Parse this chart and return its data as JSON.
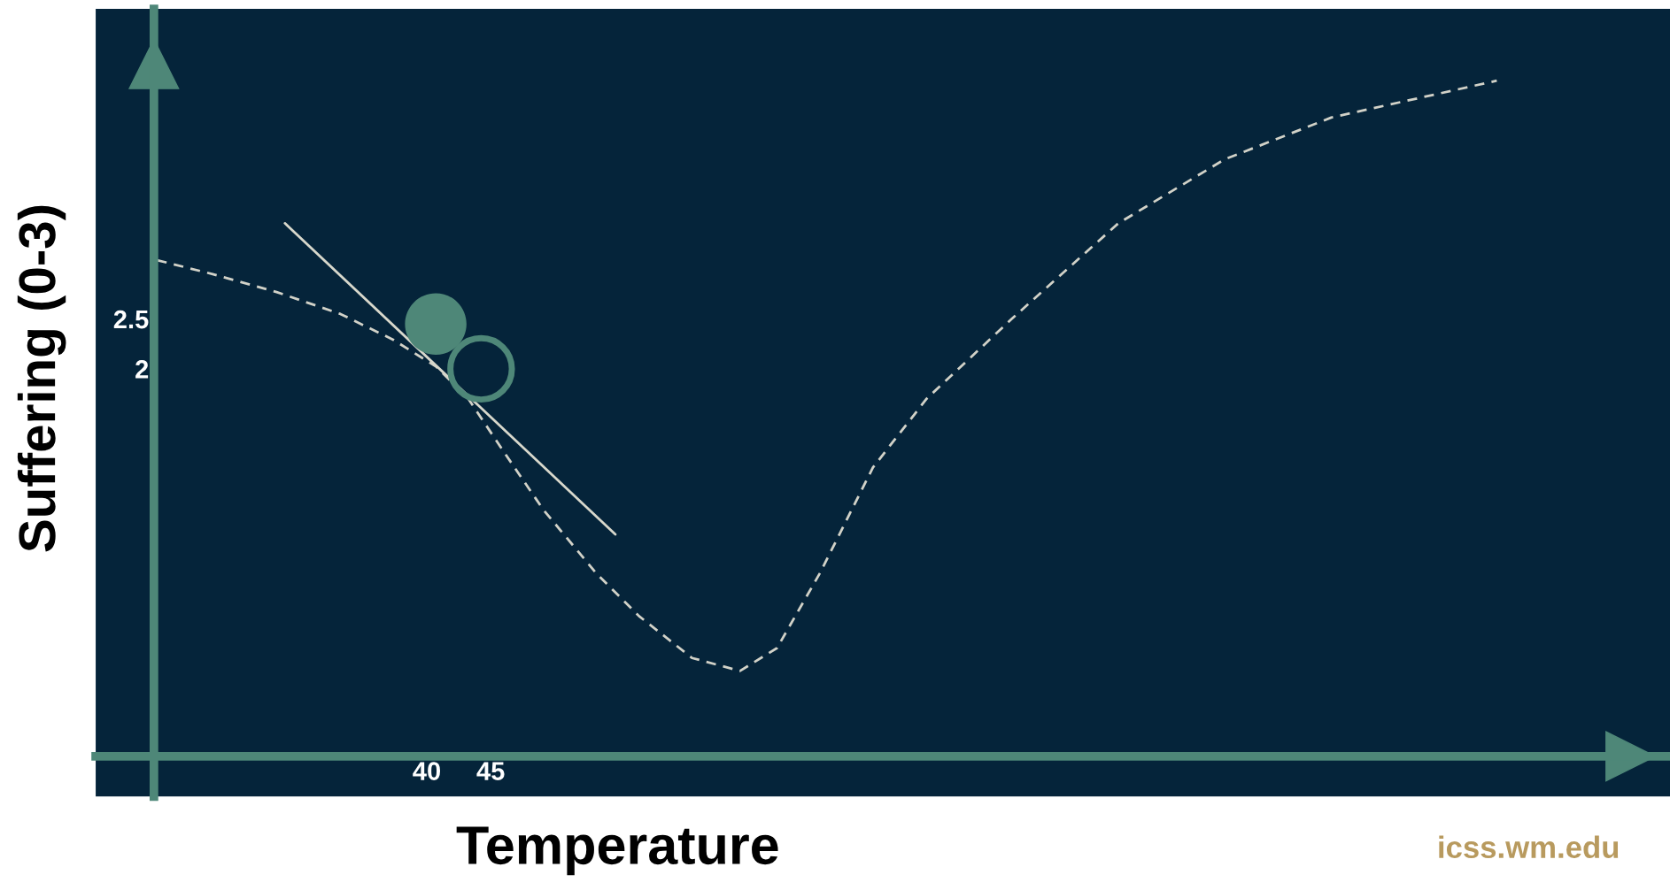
{
  "chart_data": {
    "type": "line",
    "xlabel": "Temperature",
    "ylabel": "Suffering (0-3)",
    "xlim": [
      14.1,
      137.25
    ],
    "ylim": [
      -2.29,
      5.61
    ],
    "xticks": [
      40,
      45
    ],
    "yticks": [
      2,
      2.5
    ],
    "grid": false,
    "series": [
      {
        "color": "#d2d2c8",
        "line_style": "dashed",
        "x": [
          18.9,
          23.25,
          28.25,
          33.25,
          37.4,
          40.75,
          43.25,
          45.75,
          49.1,
          53.25,
          56.6,
          60.75,
          64.5,
          67.4,
          70.75,
          74.9,
          79.1,
          85.75,
          94.1,
          102.4,
          110.75,
          123.7
        ],
        "values": [
          3.09,
          2.95,
          2.77,
          2.55,
          2.29,
          2.02,
          1.7,
          1.22,
          0.59,
          -0.05,
          -0.48,
          -0.9,
          -1.03,
          -0.8,
          -0.05,
          1.01,
          1.7,
          2.5,
          3.46,
          4.1,
          4.52,
          4.89
        ]
      },
      {
        "color": "#d8d8cc",
        "line_style": "solid",
        "x": [
          28.9,
          54.75
        ],
        "values": [
          3.46,
          0.34
        ]
      },
      {
        "type": "scatter",
        "color": "#4e8778",
        "marker": "circle",
        "x": [
          40.7
        ],
        "values": [
          2.45
        ]
      },
      {
        "type": "scatter",
        "color": "#4e8778",
        "marker": "circle",
        "x": [
          44.25
        ],
        "values": [
          2.0
        ]
      }
    ],
    "annotations": [
      "icss.wm.edu"
    ]
  }
}
